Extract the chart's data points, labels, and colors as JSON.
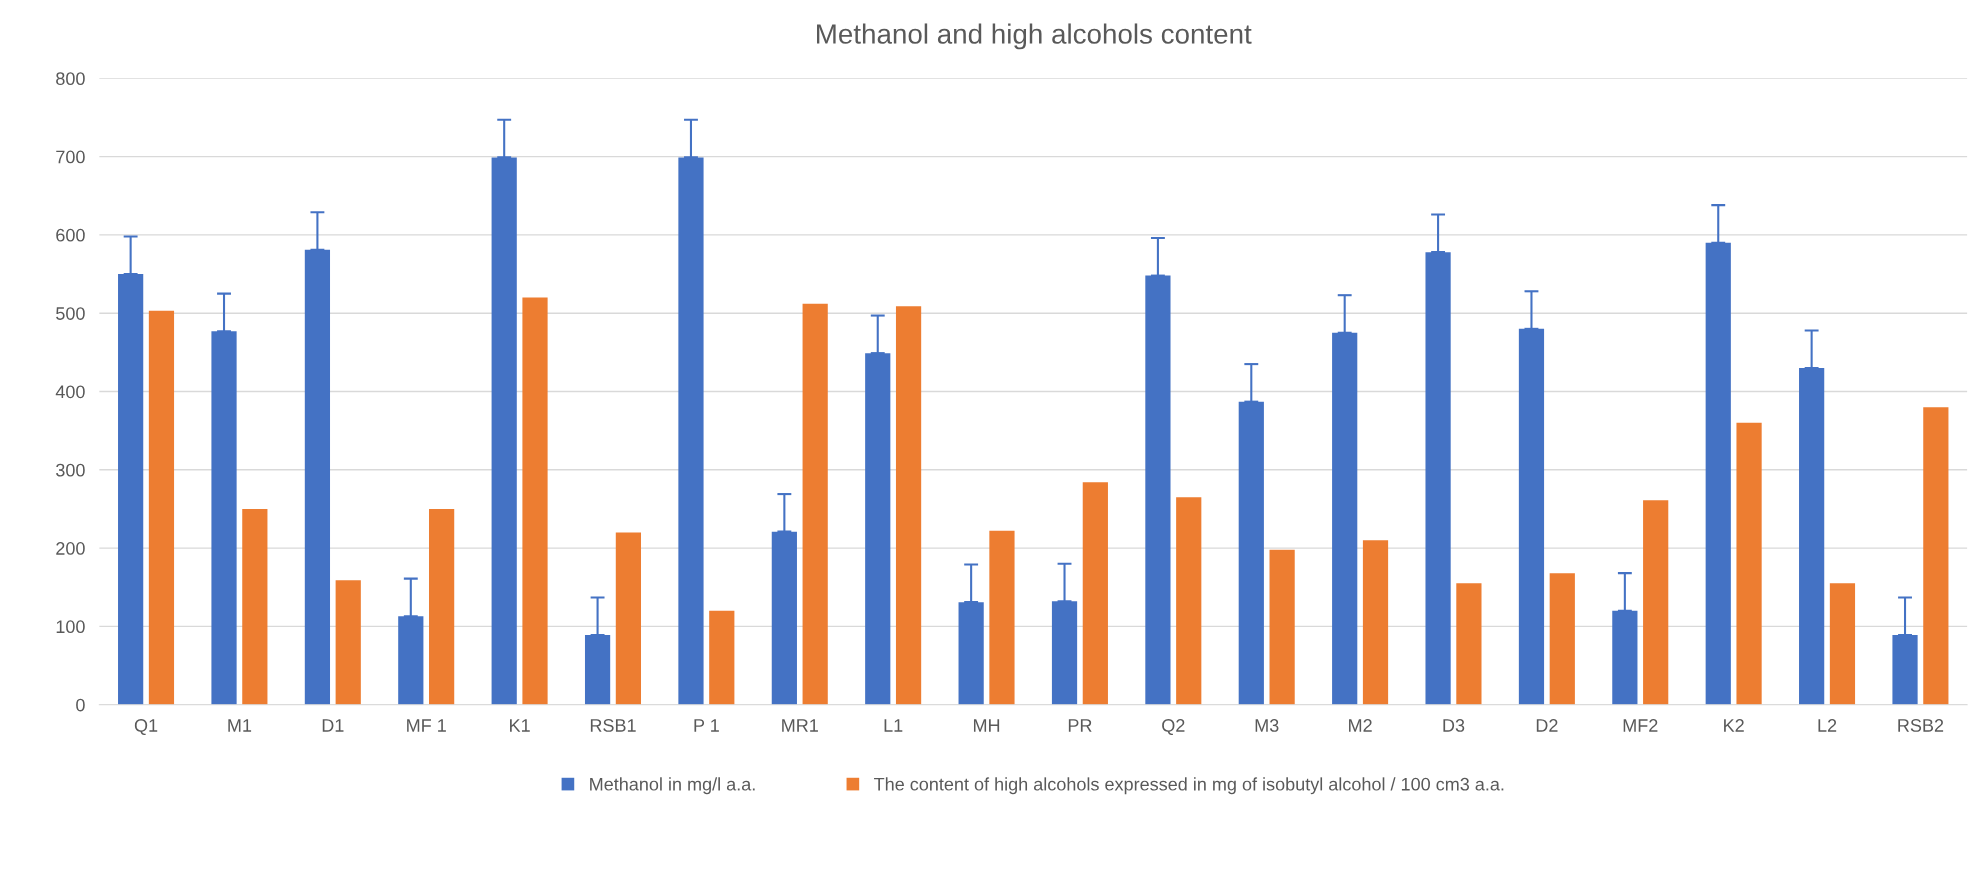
{
  "chart_data": {
    "type": "bar",
    "title": "Methanol and high alcohols content",
    "categories": [
      "Q1",
      "M1",
      "D1",
      "MF 1",
      "K1",
      "RSB1",
      "P 1",
      "MR1",
      "L1",
      "MH",
      "PR",
      "Q2",
      "M3",
      "M2",
      "D3",
      "D2",
      "MF2",
      "K2",
      "L2",
      "RSB2"
    ],
    "series": [
      {
        "name": "Methanol in mg/l a.a.",
        "color": "#4472c4",
        "values": [
          550,
          477,
          581,
          113,
          699,
          89,
          699,
          221,
          449,
          131,
          132,
          548,
          387,
          475,
          578,
          480,
          120,
          590,
          430,
          89
        ],
        "errors": [
          [
            550,
            598
          ],
          [
            477,
            525
          ],
          [
            581,
            629
          ],
          [
            113,
            161
          ],
          [
            699,
            747
          ],
          [
            89,
            137
          ],
          [
            699,
            747
          ],
          [
            221,
            269
          ],
          [
            449,
            497
          ],
          [
            131,
            179
          ],
          [
            132,
            180
          ],
          [
            548,
            596
          ],
          [
            387,
            435
          ],
          [
            475,
            523
          ],
          [
            578,
            626
          ],
          [
            480,
            528
          ],
          [
            120,
            168
          ],
          [
            590,
            638
          ],
          [
            430,
            478
          ],
          [
            89,
            137
          ]
        ]
      },
      {
        "name": "The content of high alcohols expressed in mg of isobutyl alcohol / 100 cm3 a.a.",
        "color": "#ed7d31",
        "values": [
          503,
          250,
          159,
          250,
          520,
          220,
          120,
          512,
          509,
          222,
          284,
          265,
          198,
          210,
          155,
          168,
          261,
          360,
          155,
          380
        ]
      }
    ],
    "ylim": [
      0,
      800
    ],
    "yticks": [
      0,
      100,
      200,
      300,
      400,
      500,
      600,
      700,
      800
    ],
    "grid": "y",
    "legend": "bottom"
  }
}
